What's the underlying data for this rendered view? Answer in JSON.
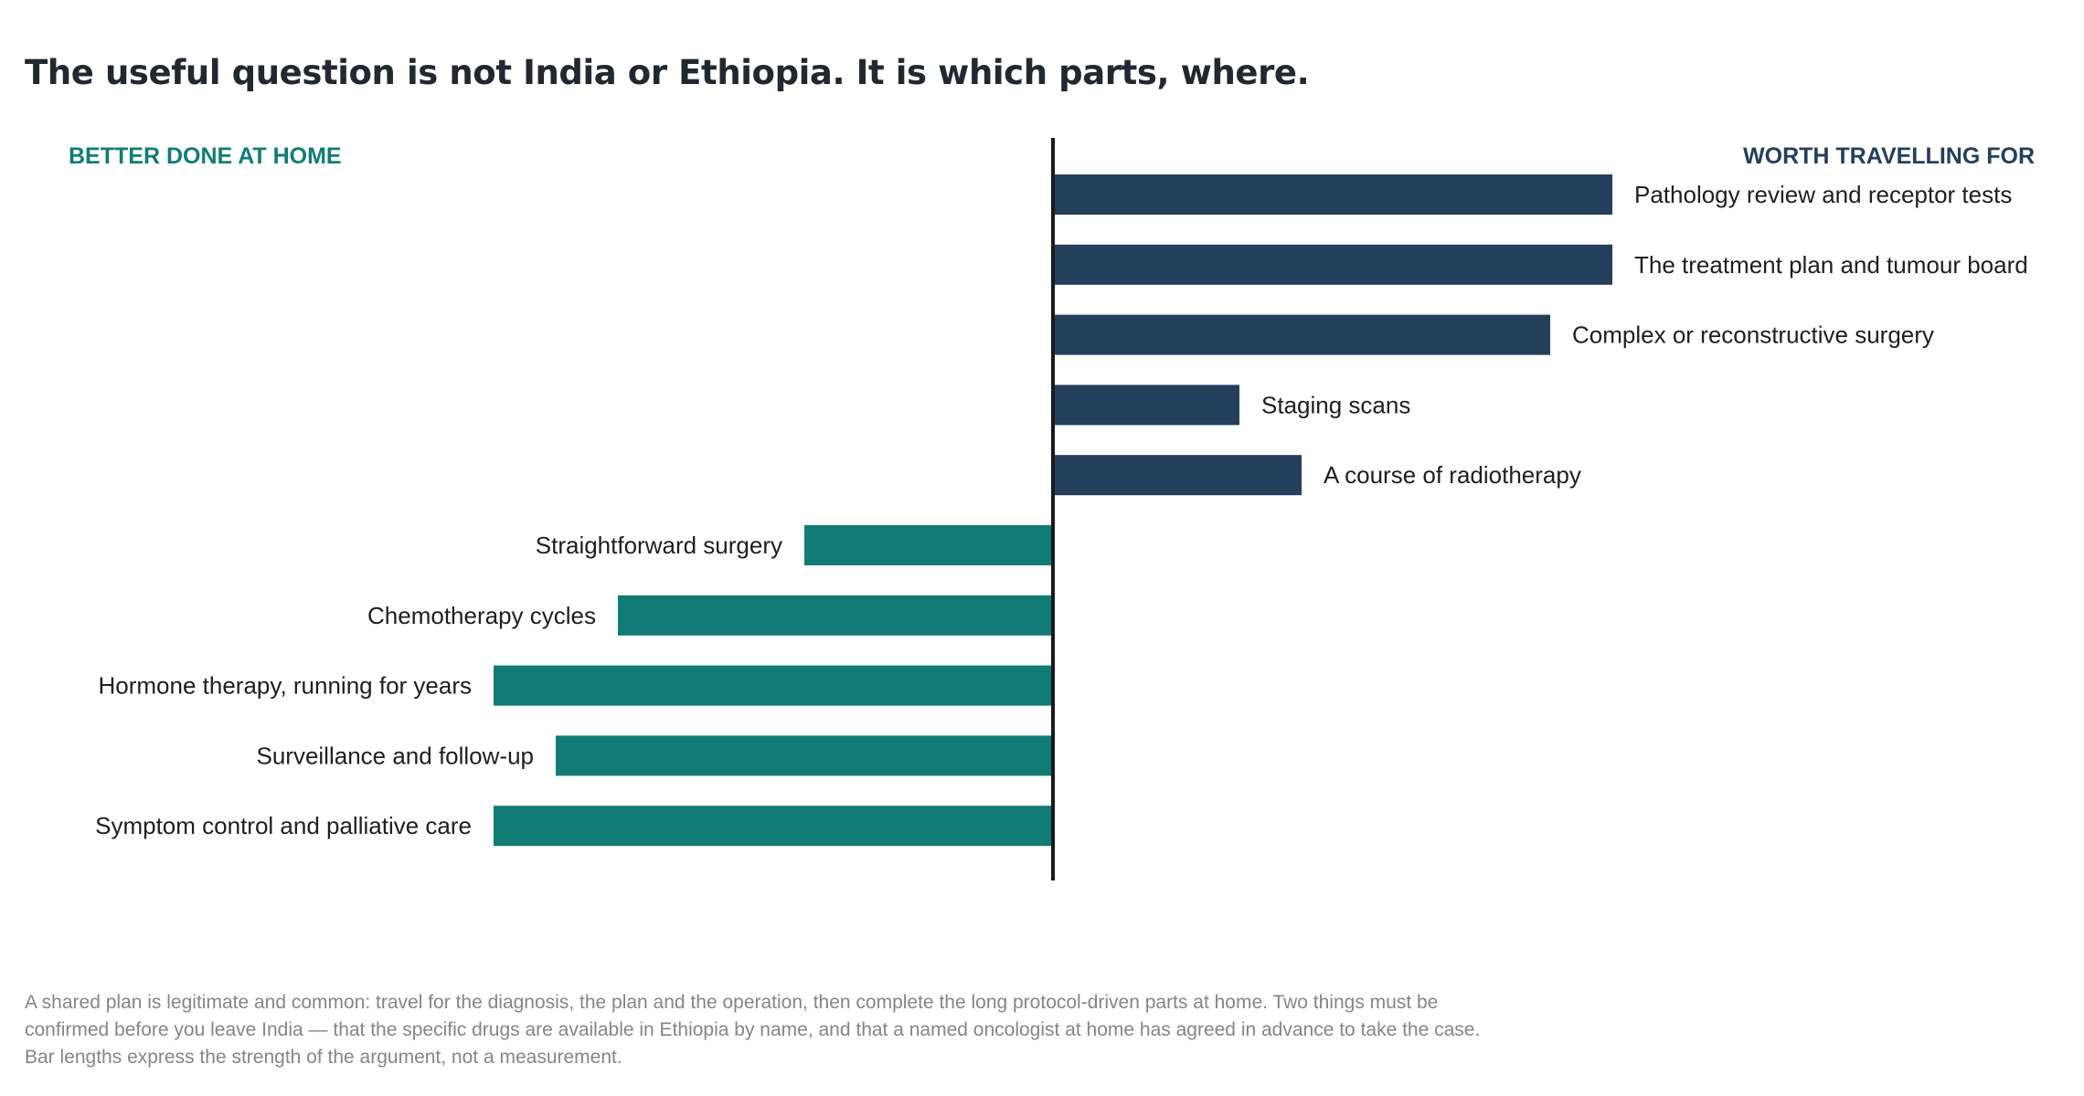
{
  "title": "The useful question is not India or Ethiopia. It is which parts, where.",
  "footnote": "A shared plan is legitimate and common: travel for the diagnosis, the plan and the operation, then complete the long protocol-driven parts at home. Two things must be confirmed before you leave India — that the specific drugs are available in Ethiopia by name, and that a named oncologist at home has agreed in advance to take the case. Bar lengths express the strength of the argument, not a measurement.",
  "colors": {
    "travel": "#243f5c",
    "home": "#117b75",
    "axis": "#1a1a1a",
    "title": "#222831",
    "footnote": "#858585"
  },
  "chart_data": {
    "type": "bar",
    "orientation": "horizontal-diverging",
    "title": "The useful question is not India or Ethiopia. It is which parts, where.",
    "left_heading": "BETTER DONE AT HOME",
    "right_heading": "WORTH TRAVELLING FOR",
    "xlim": [
      -10,
      10
    ],
    "grid": false,
    "categories": [
      "Pathology review and receptor tests",
      "The treatment plan and tumour board",
      "Complex or reconstructive surgery",
      "Staging scans",
      "A course of radiotherapy",
      "Straightforward surgery",
      "Chemotherapy cycles",
      "Hormone therapy, running for years",
      "Surveillance and follow-up",
      "Symptom control and palliative care"
    ],
    "values": [
      9,
      9,
      8,
      3,
      4,
      -4,
      -7,
      -9,
      -8,
      -9
    ],
    "series_side": [
      "travel",
      "travel",
      "travel",
      "travel",
      "travel",
      "home",
      "home",
      "home",
      "home",
      "home"
    ]
  }
}
